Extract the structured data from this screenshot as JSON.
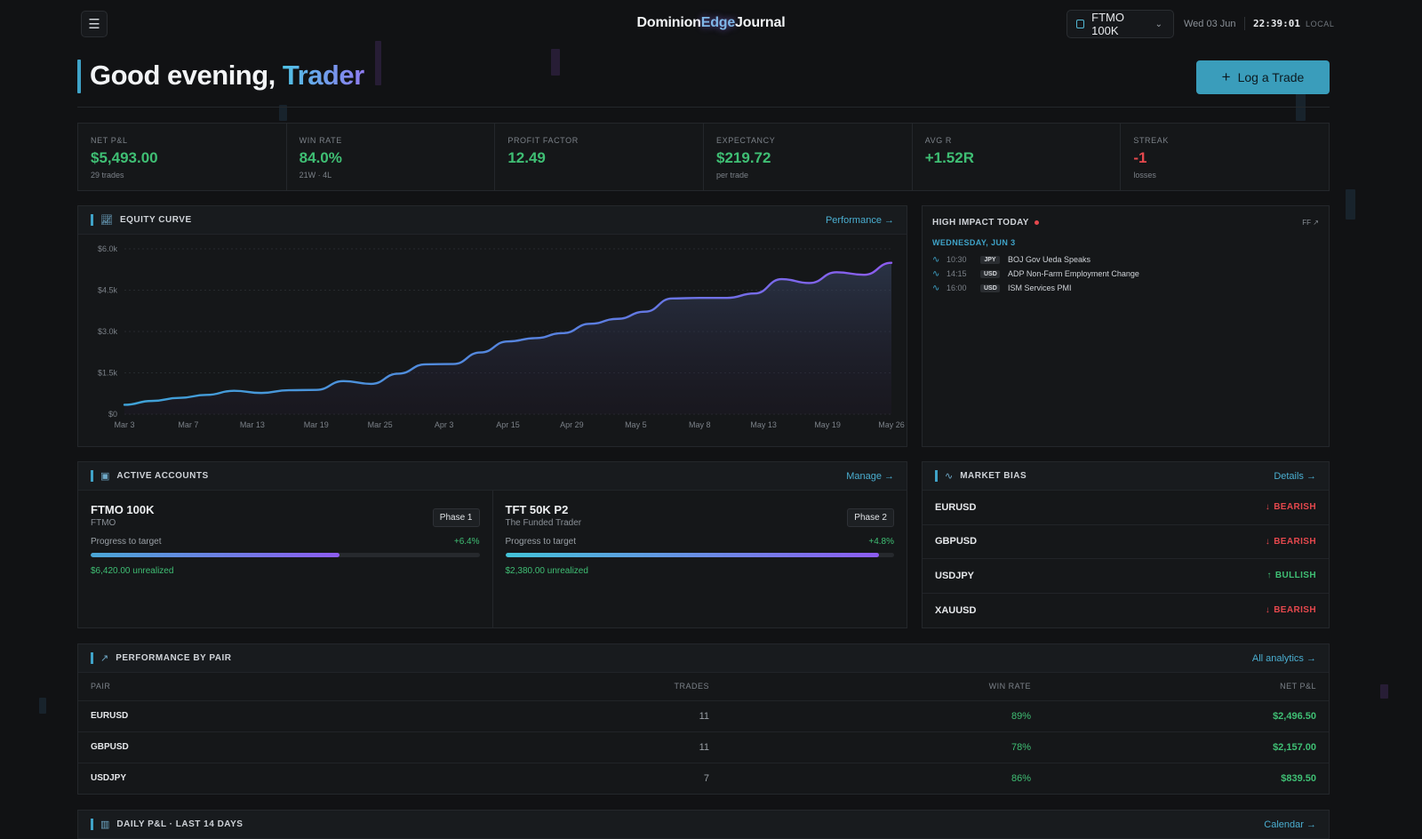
{
  "header": {
    "brand_left": "Dominion",
    "brand_mid": "Edge",
    "brand_right": "Journal",
    "account_selected": "FTMO 100K",
    "date": "Wed 03 Jun",
    "clock": "22:39:01",
    "tz": "LOCAL"
  },
  "greeting": {
    "prefix": "Good evening, ",
    "name": "Trader",
    "action": "Log a Trade"
  },
  "stats": [
    {
      "label": "NET P&L",
      "value": "$5,493.00",
      "sub": "29 trades",
      "color": "green"
    },
    {
      "label": "WIN RATE",
      "value": "84.0%",
      "sub": "21W · 4L",
      "color": "green"
    },
    {
      "label": "PROFIT FACTOR",
      "value": "12.49",
      "sub": "",
      "color": "green"
    },
    {
      "label": "EXPECTANCY",
      "value": "$219.72",
      "sub": "per trade",
      "color": "green"
    },
    {
      "label": "AVG R",
      "value": "+1.52R",
      "sub": "",
      "color": "green"
    },
    {
      "label": "STREAK",
      "value": "-1",
      "sub": "losses",
      "color": "red"
    }
  ],
  "equity": {
    "title": "EQUITY CURVE",
    "link": "Performance →",
    "chart_data": {
      "type": "area",
      "y_ticks": [
        "$6.0k",
        "$4.5k",
        "$3.0k",
        "$1.5k",
        "$0"
      ],
      "ylim": [
        0,
        6000
      ],
      "x_ticks": [
        "Mar 3",
        "Mar 7",
        "Mar 13",
        "Mar 19",
        "Mar 25",
        "Apr 3",
        "Apr 15",
        "Apr 29",
        "May 5",
        "May 8",
        "May 13",
        "May 19",
        "May 26"
      ],
      "y": [
        340,
        480,
        590,
        700,
        850,
        770,
        870,
        880,
        1200,
        1100,
        1470,
        1810,
        1820,
        2240,
        2640,
        2760,
        2940,
        3280,
        3460,
        3720,
        4200,
        4220,
        4220,
        4380,
        4900,
        4760,
        5150,
        5060,
        5493
      ]
    }
  },
  "impact": {
    "title": "HIGH IMPACT TODAY",
    "ff": "FF ↗",
    "day": "WEDNESDAY, JUN 3",
    "events": [
      {
        "time": "10:30",
        "ccy": "JPY",
        "event": "BOJ Gov Ueda Speaks"
      },
      {
        "time": "14:15",
        "ccy": "USD",
        "event": "ADP Non-Farm Employment Change"
      },
      {
        "time": "16:00",
        "ccy": "USD",
        "event": "ISM Services PMI"
      }
    ]
  },
  "accounts": {
    "title": "ACTIVE ACCOUNTS",
    "link": "Manage →",
    "progress_label": "Progress to target",
    "items": [
      {
        "name": "FTMO 100K",
        "firm": "FTMO",
        "phase": "Phase 1",
        "pct": "+6.4%",
        "progress": 0.64,
        "unrealized": "$6,420.00 unrealized"
      },
      {
        "name": "TFT 50K P2",
        "firm": "The Funded Trader",
        "phase": "Phase 2",
        "pct": "+4.8%",
        "progress": 0.96,
        "unrealized": "$2,380.00 unrealized"
      }
    ]
  },
  "bias": {
    "title": "MARKET BIAS",
    "link": "Details →",
    "items": [
      {
        "pair": "EURUSD",
        "dir": "BEARISH",
        "arrow": "↓",
        "color": "#e5484d"
      },
      {
        "pair": "GBPUSD",
        "dir": "BEARISH",
        "arrow": "↓",
        "color": "#e5484d"
      },
      {
        "pair": "USDJPY",
        "dir": "BULLISH",
        "arrow": "↑",
        "color": "#3fbf74"
      },
      {
        "pair": "XAUUSD",
        "dir": "BEARISH",
        "arrow": "↓",
        "color": "#e5484d"
      }
    ]
  },
  "performance": {
    "title": "PERFORMANCE BY PAIR",
    "link": "All analytics →",
    "columns": [
      "PAIR",
      "TRADES",
      "WIN RATE",
      "NET P&L"
    ],
    "rows": [
      [
        "EURUSD",
        "11",
        "89%",
        "$2,496.50"
      ],
      [
        "GBPUSD",
        "11",
        "78%",
        "$2,157.00"
      ],
      [
        "USDJPY",
        "7",
        "86%",
        "$839.50"
      ]
    ]
  },
  "daily": {
    "title": "DAILY P&L · LAST 14 DAYS",
    "link": "Calendar →"
  }
}
